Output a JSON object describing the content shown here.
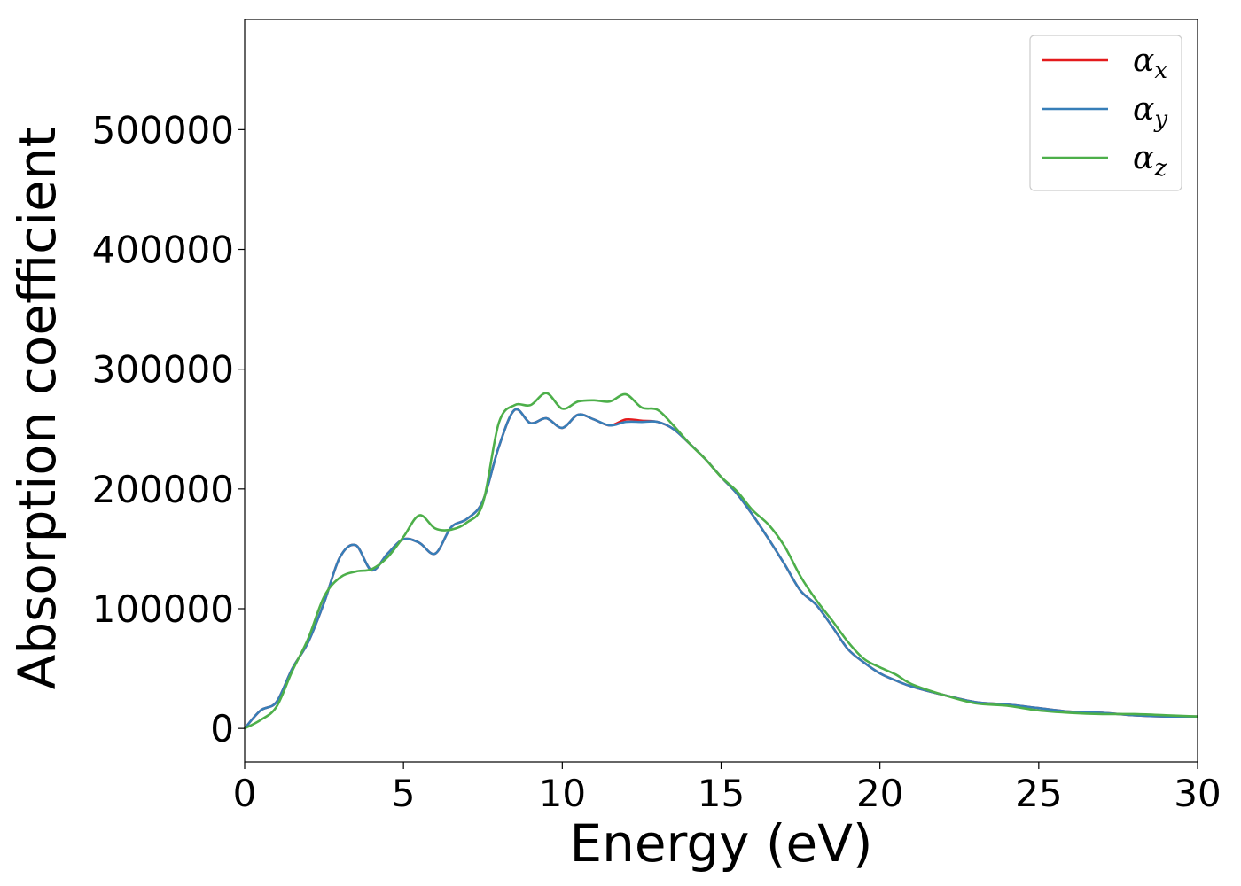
{
  "chart_data": {
    "type": "line",
    "title": "",
    "xlabel": "Energy (eV)",
    "ylabel": "Absorption coefficient",
    "xlim": [
      0,
      30
    ],
    "ylim": [
      -28000,
      592000
    ],
    "x_ticks": [
      0,
      5,
      10,
      15,
      20,
      25,
      30
    ],
    "y_ticks": [
      0,
      100000,
      200000,
      300000,
      400000,
      500000
    ],
    "grid": false,
    "legend_position": "top-right",
    "legend": [
      {
        "symbol": "α",
        "subscript": "x",
        "color": "#e41a1c"
      },
      {
        "symbol": "α",
        "subscript": "y",
        "color": "#377eb8"
      },
      {
        "symbol": "α",
        "subscript": "z",
        "color": "#4daf4a"
      }
    ],
    "x": [
      0,
      0.5,
      1.0,
      1.5,
      2.0,
      2.5,
      3.0,
      3.5,
      4.0,
      4.5,
      5.0,
      5.5,
      6.0,
      6.5,
      7.0,
      7.5,
      8.0,
      8.5,
      9.0,
      9.5,
      10.0,
      10.5,
      11.0,
      11.5,
      12.0,
      12.5,
      13.0,
      13.5,
      14.0,
      14.5,
      15.0,
      15.5,
      16.0,
      16.5,
      17.0,
      17.5,
      18.0,
      18.5,
      19.0,
      19.5,
      20.0,
      20.5,
      21.0,
      22.0,
      23.0,
      24.0,
      25.0,
      26.0,
      27.0,
      28.0,
      29.0,
      30.0
    ],
    "series": [
      {
        "name": "α_x",
        "color": "#e41a1c",
        "values": [
          0,
          15000,
          22000,
          50000,
          72000,
          105000,
          143000,
          153000,
          132000,
          146000,
          158000,
          155000,
          146000,
          168000,
          175000,
          190000,
          235000,
          266000,
          255000,
          259000,
          251000,
          262000,
          258000,
          253000,
          258000,
          257000,
          256000,
          250000,
          238000,
          225000,
          210000,
          196000,
          178000,
          158000,
          137000,
          115000,
          103000,
          85000,
          66000,
          55000,
          46000,
          40000,
          35000,
          28000,
          22000,
          20000,
          17000,
          14000,
          13000,
          11000,
          10000,
          10000
        ]
      },
      {
        "name": "α_y",
        "color": "#377eb8",
        "values": [
          0,
          15000,
          22000,
          50000,
          72000,
          105000,
          143000,
          153000,
          132000,
          146000,
          158000,
          155000,
          146000,
          168000,
          175000,
          190000,
          235000,
          266000,
          255000,
          259000,
          251000,
          262000,
          258000,
          253000,
          256000,
          256000,
          256000,
          250000,
          238000,
          225000,
          210000,
          196000,
          178000,
          158000,
          137000,
          115000,
          103000,
          85000,
          66000,
          55000,
          46000,
          40000,
          35000,
          28000,
          22000,
          20000,
          17000,
          14000,
          13000,
          11000,
          10000,
          10000
        ]
      },
      {
        "name": "α_z",
        "color": "#4daf4a",
        "values": [
          0,
          7000,
          18000,
          48000,
          75000,
          110000,
          126000,
          131000,
          133000,
          143000,
          160000,
          178000,
          167000,
          166000,
          172000,
          188000,
          255000,
          270000,
          270000,
          280000,
          267000,
          273000,
          274000,
          273000,
          279000,
          268000,
          266000,
          253000,
          238000,
          225000,
          210000,
          198000,
          182000,
          170000,
          152000,
          127000,
          107000,
          90000,
          72000,
          58000,
          51000,
          45000,
          37000,
          28000,
          21000,
          19000,
          15000,
          13000,
          12000,
          12000,
          11000,
          10000
        ]
      }
    ]
  }
}
